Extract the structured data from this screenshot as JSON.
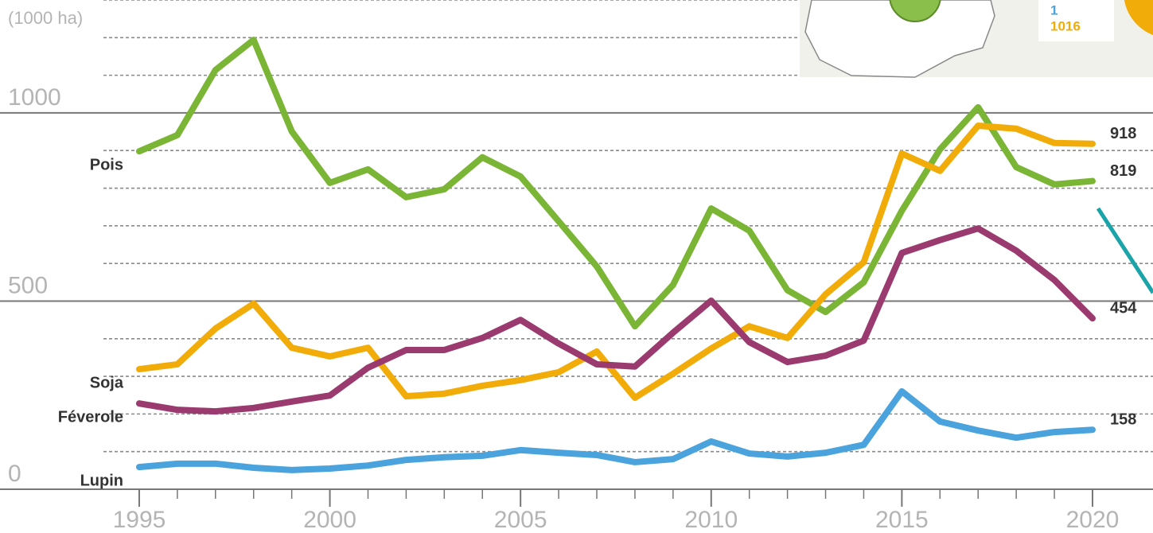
{
  "chart_data": {
    "type": "line",
    "y_axis_label": "(1000 ha)",
    "x": [
      1995,
      1996,
      1997,
      1998,
      1999,
      2000,
      2001,
      2002,
      2003,
      2004,
      2005,
      2006,
      2007,
      2008,
      2009,
      2010,
      2011,
      2012,
      2013,
      2014,
      2015,
      2016,
      2017,
      2018,
      2019,
      2020
    ],
    "xlim": [
      1992,
      2021
    ],
    "xticks": [
      1995,
      2000,
      2005,
      2010,
      2015,
      2020
    ],
    "ylim": [
      0,
      1300
    ],
    "yticks": [
      0,
      500,
      1000
    ],
    "yminorticks": [
      100,
      200,
      300,
      400,
      600,
      700,
      800,
      900,
      1100,
      1200,
      1300
    ],
    "grid": true,
    "series": [
      {
        "name": "Pois",
        "color": "#7ab535",
        "values": [
          898,
          941,
          1114,
          1194,
          951,
          814,
          850,
          776,
          797,
          882,
          831,
          712,
          592,
          433,
          543,
          746,
          687,
          529,
          471,
          550,
          740,
          903,
          1015,
          856,
          810,
          819
        ]
      },
      {
        "name": "Soja",
        "color": "#f2ac0a",
        "values": [
          319,
          332,
          427,
          493,
          376,
          353,
          376,
          247,
          254,
          275,
          290,
          311,
          366,
          243,
          307,
          374,
          433,
          402,
          518,
          603,
          892,
          846,
          966,
          958,
          920,
          918
        ]
      },
      {
        "name": "Féverole",
        "color": "#9a3a6e",
        "values": [
          228,
          211,
          207,
          216,
          233,
          249,
          323,
          370,
          370,
          402,
          450,
          387,
          332,
          326,
          416,
          501,
          391,
          338,
          355,
          395,
          628,
          662,
          693,
          634,
          556,
          454
        ]
      },
      {
        "name": "Lupin",
        "color": "#4aa3dc",
        "values": [
          59,
          68,
          68,
          57,
          51,
          55,
          63,
          78,
          85,
          89,
          104,
          97,
          91,
          72,
          80,
          127,
          95,
          87,
          97,
          118,
          260,
          180,
          156,
          137,
          152,
          158
        ]
      }
    ],
    "inset": {
      "labels": [
        "1",
        "1016"
      ]
    }
  }
}
